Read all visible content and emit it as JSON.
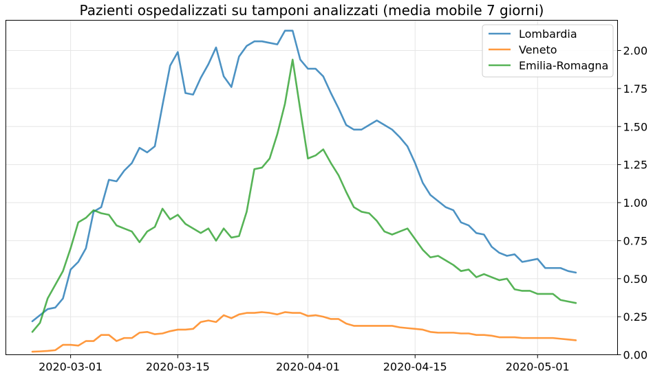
{
  "chart_data": {
    "type": "line",
    "title": "Pazienti ospedalizzati su tamponi analizzati (media mobile 7 giorni)",
    "xlabel": "",
    "ylabel": "",
    "x_start": "2020-02-25",
    "x_ticks": [
      "2020-03-01",
      "2020-03-15",
      "2020-04-01",
      "2020-04-15",
      "2020-05-01"
    ],
    "y_ticks": [
      "0.00",
      "0.25",
      "0.50",
      "0.75",
      "1.00",
      "1.25",
      "1.50",
      "1.75",
      "2.00"
    ],
    "ylim": [
      0,
      2.2
    ],
    "grid": true,
    "y_axis_side": "right",
    "legend_position": "top-right",
    "series": [
      {
        "name": "Lombardia",
        "color": "#1f77b4",
        "values": [
          0.22,
          0.26,
          0.3,
          0.31,
          0.37,
          0.56,
          0.61,
          0.7,
          0.94,
          0.97,
          1.15,
          1.14,
          1.21,
          1.26,
          1.36,
          1.33,
          1.37,
          1.64,
          1.9,
          1.99,
          1.72,
          1.71,
          1.82,
          1.91,
          2.02,
          1.83,
          1.76,
          1.96,
          2.03,
          2.06,
          2.06,
          2.05,
          2.04,
          2.13,
          2.13,
          1.94,
          1.88,
          1.88,
          1.83,
          1.72,
          1.62,
          1.51,
          1.48,
          1.48,
          1.51,
          1.54,
          1.51,
          1.48,
          1.43,
          1.37,
          1.26,
          1.13,
          1.05,
          1.01,
          0.97,
          0.95,
          0.87,
          0.85,
          0.8,
          0.79,
          0.71,
          0.67,
          0.65,
          0.66,
          0.61,
          0.62,
          0.63,
          0.57,
          0.57,
          0.57,
          0.55,
          0.54
        ]
      },
      {
        "name": "Veneto",
        "color": "#ff7f0e",
        "values": [
          0.02,
          0.022,
          0.025,
          0.03,
          0.065,
          0.065,
          0.06,
          0.09,
          0.09,
          0.13,
          0.13,
          0.09,
          0.11,
          0.11,
          0.145,
          0.15,
          0.135,
          0.14,
          0.155,
          0.165,
          0.165,
          0.17,
          0.215,
          0.225,
          0.215,
          0.26,
          0.24,
          0.265,
          0.275,
          0.275,
          0.28,
          0.275,
          0.265,
          0.28,
          0.275,
          0.275,
          0.255,
          0.26,
          0.25,
          0.235,
          0.235,
          0.205,
          0.19,
          0.19,
          0.19,
          0.19,
          0.19,
          0.19,
          0.18,
          0.175,
          0.17,
          0.165,
          0.15,
          0.145,
          0.145,
          0.145,
          0.14,
          0.14,
          0.13,
          0.13,
          0.125,
          0.115,
          0.115,
          0.115,
          0.11,
          0.11,
          0.11,
          0.11,
          0.11,
          0.105,
          0.1,
          0.095
        ]
      },
      {
        "name": "Emilia-Romagna",
        "color": "#2ca02c",
        "values": [
          0.15,
          0.21,
          0.37,
          0.46,
          0.55,
          0.7,
          0.87,
          0.9,
          0.95,
          0.93,
          0.92,
          0.85,
          0.83,
          0.81,
          0.74,
          0.81,
          0.84,
          0.96,
          0.89,
          0.92,
          0.86,
          0.83,
          0.8,
          0.83,
          0.75,
          0.83,
          0.77,
          0.78,
          0.94,
          1.22,
          1.23,
          1.29,
          1.45,
          1.65,
          1.94,
          1.61,
          1.29,
          1.31,
          1.35,
          1.26,
          1.18,
          1.07,
          0.97,
          0.94,
          0.93,
          0.88,
          0.81,
          0.79,
          0.81,
          0.83,
          0.76,
          0.69,
          0.64,
          0.65,
          0.62,
          0.59,
          0.55,
          0.56,
          0.51,
          0.53,
          0.51,
          0.49,
          0.5,
          0.43,
          0.42,
          0.42,
          0.4,
          0.4,
          0.4,
          0.36,
          0.35,
          0.34
        ]
      }
    ]
  }
}
